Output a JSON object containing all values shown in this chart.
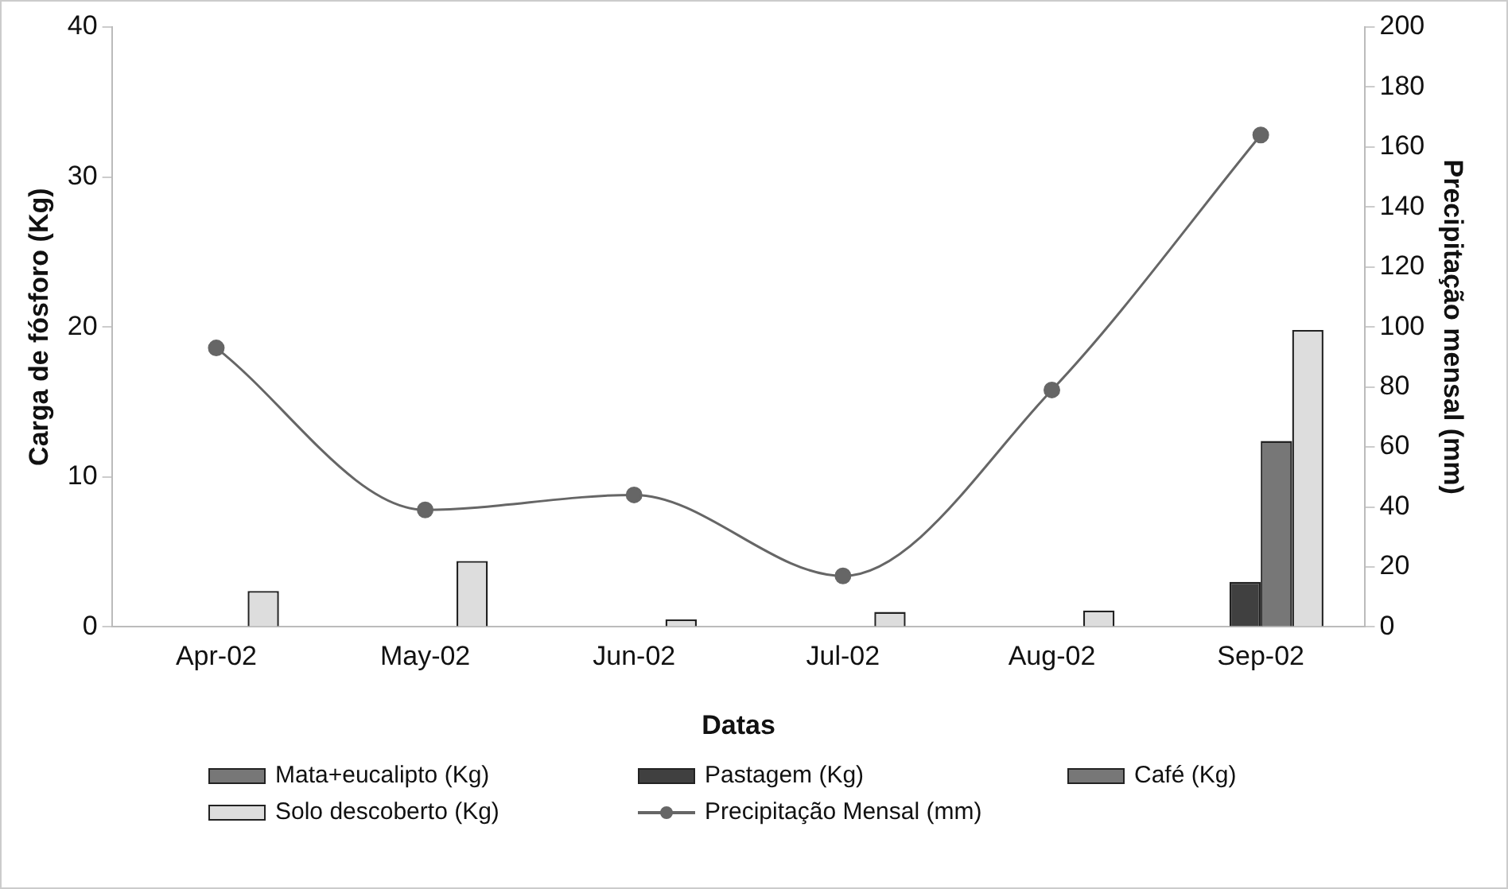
{
  "chart_data": {
    "type": "bar",
    "xlabel": "Datas",
    "ylabel": "Carga de fósforo (Kg)",
    "y2label": "Precipitação mensal (mm)",
    "categories": [
      "Apr-02",
      "May-02",
      "Jun-02",
      "Jul-02",
      "Aug-02",
      "Sep-02"
    ],
    "series": [
      {
        "name": "Mata+eucalipto (Kg)",
        "color": "#777777",
        "values": [
          0,
          0,
          0,
          0,
          0,
          0
        ]
      },
      {
        "name": "Pastagem (Kg)",
        "color": "#404040",
        "values": [
          0,
          0,
          0,
          0,
          0,
          3.0
        ]
      },
      {
        "name": "Café (Kg)",
        "color": "#777777",
        "values": [
          0,
          0,
          0,
          0,
          0,
          12.4
        ]
      },
      {
        "name": "Solo descoberto (Kg)",
        "color": "#dddddd",
        "values": [
          2.4,
          4.4,
          0.5,
          1.0,
          1.1,
          19.8
        ]
      },
      {
        "name": "Precipitação Mensal (mm)",
        "type": "line",
        "axis": "y2",
        "color": "#666666",
        "marker": "circle",
        "values": [
          93,
          39,
          44,
          17,
          79,
          164
        ]
      }
    ],
    "ylim": [
      0,
      40
    ],
    "yticks": [
      0,
      10,
      20,
      30,
      40
    ],
    "y2lim": [
      0,
      200
    ],
    "y2ticks": [
      0,
      20,
      40,
      60,
      80,
      100,
      120,
      140,
      160,
      180,
      200
    ],
    "grid": false,
    "legend": "bottom"
  }
}
